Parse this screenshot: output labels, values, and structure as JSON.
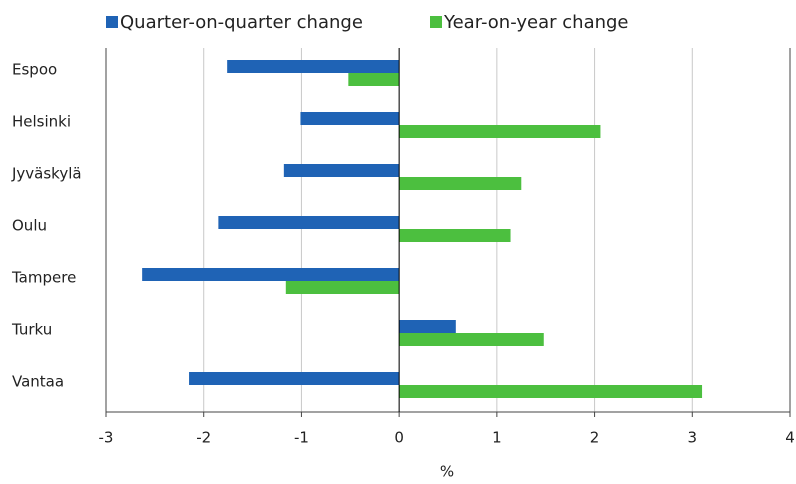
{
  "chart_data": {
    "type": "hbar",
    "categories": [
      "Espoo",
      "Helsinki",
      "Jyväskylä",
      "Oulu",
      "Tampere",
      "Turku",
      "Vantaa"
    ],
    "series": [
      {
        "name": "Quarter-on-quarter change",
        "color": "#1f63b5",
        "values": [
          -1.76,
          -1.01,
          -1.18,
          -1.85,
          -2.63,
          0.58,
          -2.15
        ]
      },
      {
        "name": "Year-on-year change",
        "color": "#4cbf3f",
        "values": [
          -0.52,
          2.06,
          1.25,
          1.14,
          -1.16,
          1.48,
          3.1
        ]
      }
    ],
    "xlabel": "%",
    "xlim": [
      -3,
      4
    ],
    "xticks": [
      -3,
      -2,
      -1,
      0,
      1,
      2,
      3,
      4
    ],
    "grid": true
  }
}
